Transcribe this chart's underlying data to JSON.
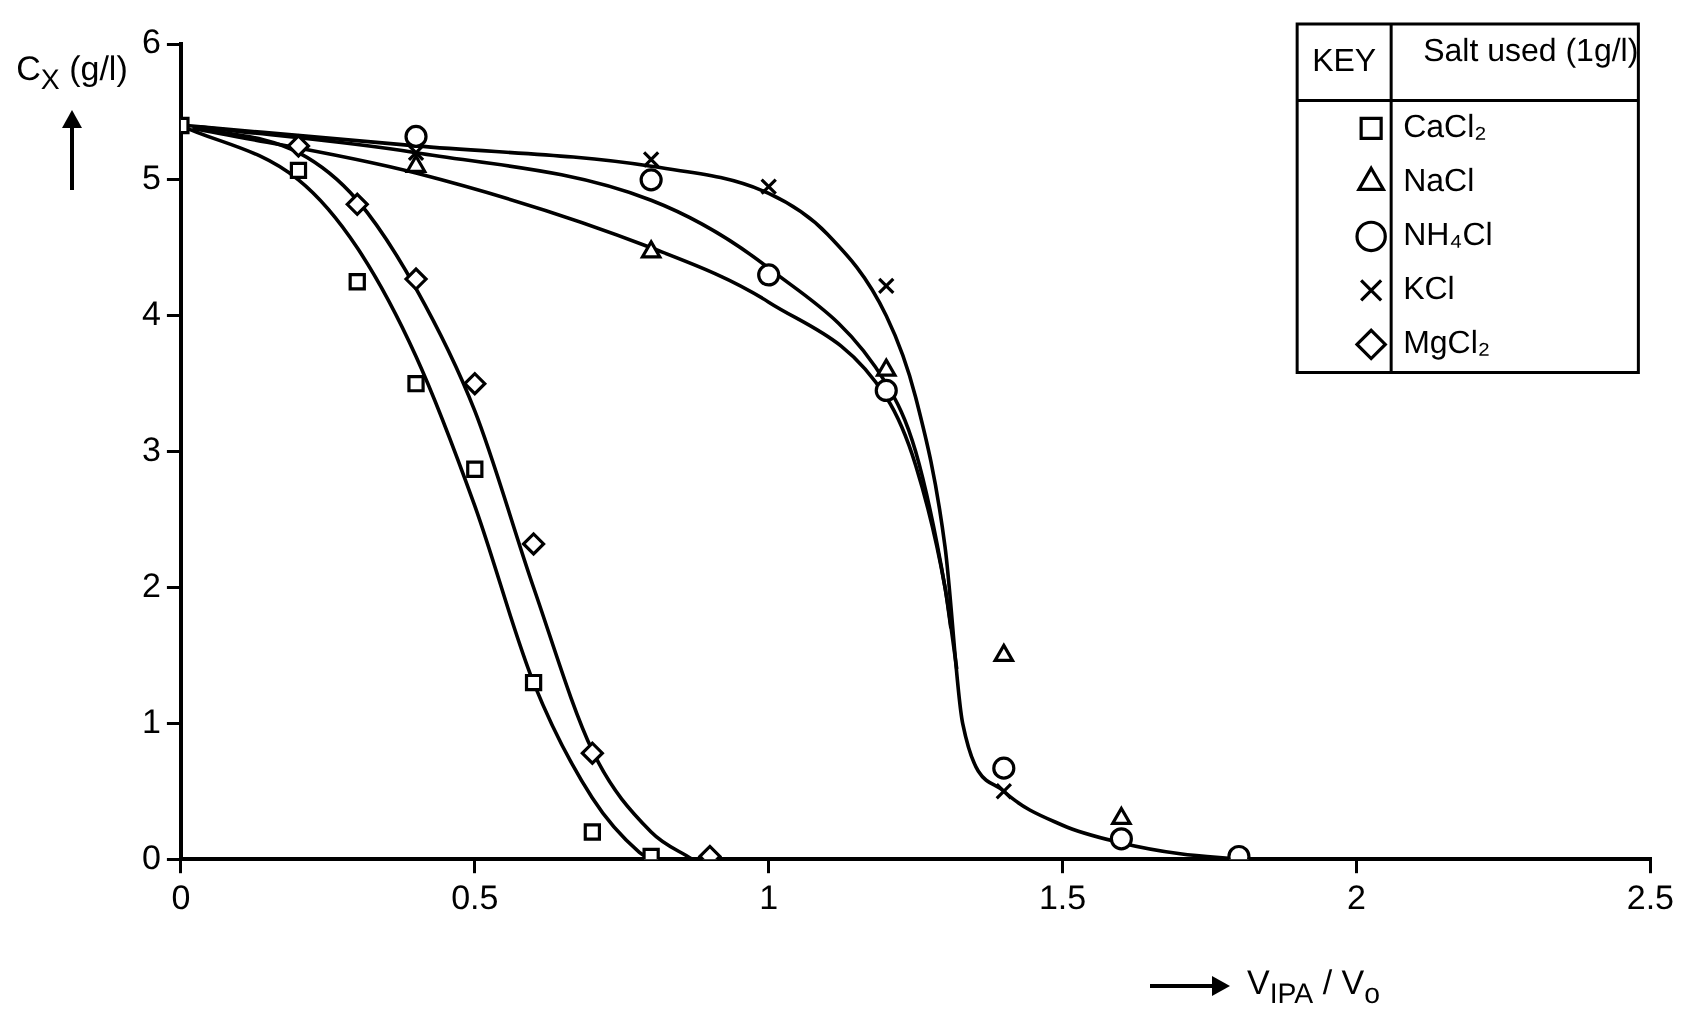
{
  "chart_data": {
    "type": "scatter",
    "xlabel": "V$_{IPA}$ / V$_{o}$",
    "ylabel": "C$_{X}$ (g/l)",
    "legend_title": "Salt used (1g/l)",
    "annotations": [
      "KEY"
    ],
    "xlim": [
      0,
      2.5
    ],
    "xticks": [
      0,
      0.5,
      1,
      1.5,
      2,
      2.5
    ],
    "ylim": [
      0,
      6
    ],
    "yticks": [
      0,
      1,
      2,
      3,
      4,
      5,
      6
    ],
    "grid": false,
    "legend": "top right",
    "series": [
      {
        "name": "CaCl₂",
        "marker": "square",
        "color": "#000000",
        "x": [
          0,
          0.2,
          0.3,
          0.4,
          0.5,
          0.6,
          0.7,
          0.8
        ],
        "values": [
          5.4,
          5.07,
          4.25,
          3.5,
          2.87,
          1.3,
          0.2,
          0.02
        ]
      },
      {
        "name": "NaCl",
        "marker": "triangle",
        "color": "#000000",
        "x": [
          0.4,
          0.8,
          1.2,
          1.4,
          1.6
        ],
        "values": [
          5.1,
          4.47,
          3.6,
          1.5,
          0.3
        ]
      },
      {
        "name": "NH₄Cl",
        "marker": "circle",
        "color": "#000000",
        "x": [
          0.4,
          0.8,
          1.0,
          1.2,
          1.4,
          1.6,
          1.8
        ],
        "values": [
          5.32,
          5.0,
          4.3,
          3.45,
          0.67,
          0.15,
          0.02
        ]
      },
      {
        "name": "KCl",
        "marker": "cross",
        "color": "#000000",
        "x": [
          0.4,
          0.8,
          1.0,
          1.2,
          1.4
        ],
        "values": [
          5.2,
          5.15,
          4.95,
          4.22,
          0.5
        ]
      },
      {
        "name": "MgCl₂",
        "marker": "diamond",
        "color": "#000000",
        "x": [
          0.2,
          0.3,
          0.4,
          0.5,
          0.6,
          0.7,
          0.9
        ],
        "values": [
          5.25,
          4.82,
          4.27,
          3.5,
          2.32,
          0.78,
          0.02
        ]
      },
      {
        "type": "line",
        "marker": "none",
        "line_style": "solid",
        "color": "#000000",
        "x": [
          0,
          0.2,
          0.3,
          0.4,
          0.5,
          0.6,
          0.7,
          0.78,
          0.8
        ],
        "values": [
          5.4,
          5.0,
          4.5,
          3.7,
          2.6,
          1.3,
          0.45,
          0.05,
          0
        ]
      },
      {
        "type": "line",
        "marker": "none",
        "line_style": "solid",
        "color": "#000000",
        "x": [
          0.02,
          0.2,
          0.3,
          0.4,
          0.5,
          0.6,
          0.7,
          0.8,
          0.87
        ],
        "values": [
          5.39,
          5.2,
          4.85,
          4.2,
          3.3,
          2.0,
          0.8,
          0.2,
          0
        ]
      },
      {
        "type": "line",
        "marker": "none",
        "line_style": "solid",
        "color": "#000000",
        "x": [
          0.02,
          0.4,
          0.8,
          1.0,
          1.2,
          1.25,
          1.3,
          1.32
        ],
        "values": [
          5.38,
          5.05,
          4.5,
          4.1,
          3.4,
          2.9,
          2.0,
          1.4
        ]
      },
      {
        "type": "line",
        "marker": "none",
        "line_style": "solid",
        "color": "#000000",
        "x": [
          0.03,
          0.4,
          0.8,
          1.0,
          1.2,
          1.25,
          1.3,
          1.31
        ],
        "values": [
          5.39,
          5.2,
          4.85,
          4.35,
          3.5,
          3.0,
          2.0,
          1.7
        ]
      },
      {
        "type": "line",
        "marker": "none",
        "line_style": "solid",
        "color": "#000000",
        "x": [
          0.01,
          0.4,
          0.8,
          1.0,
          1.1,
          1.2,
          1.25,
          1.3,
          1.33,
          1.4,
          1.5,
          1.6,
          1.7,
          1.8
        ],
        "values": [
          5.4,
          5.25,
          5.1,
          4.9,
          4.6,
          4.0,
          3.4,
          2.3,
          1.0,
          0.5,
          0.25,
          0.12,
          0.04,
          0
        ]
      }
    ]
  }
}
